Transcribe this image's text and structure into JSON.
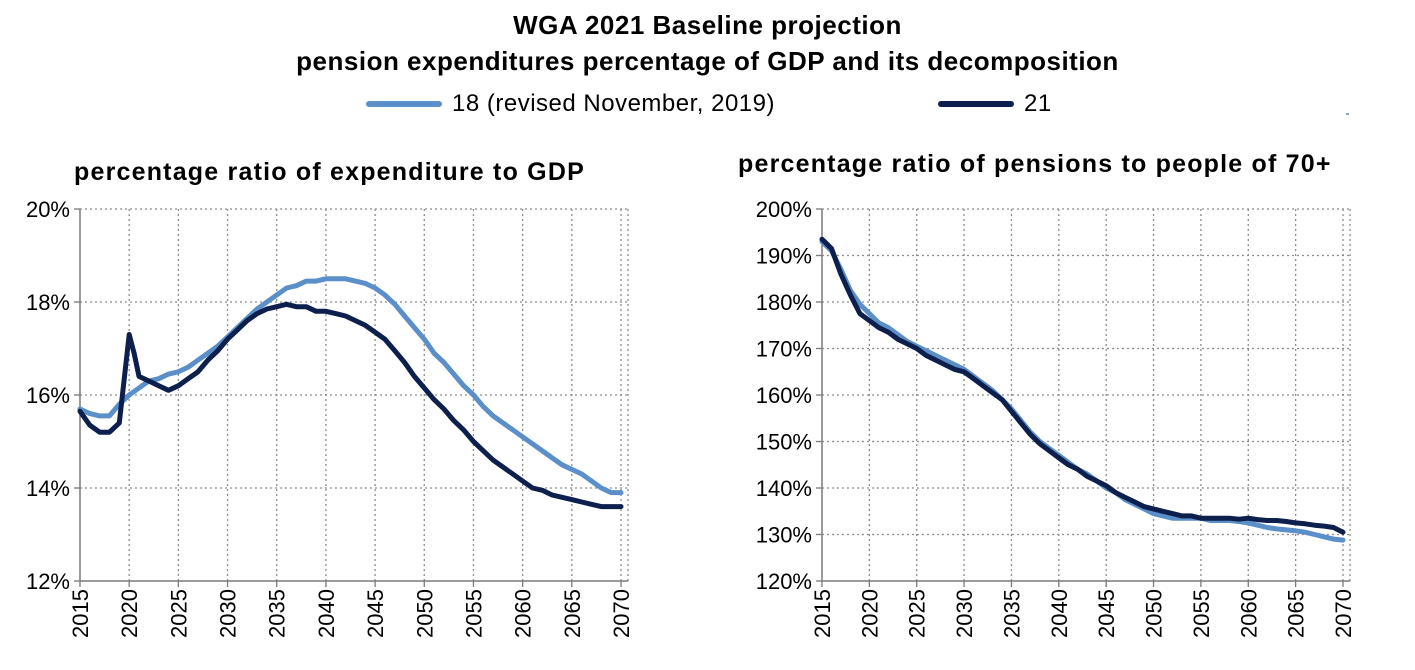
{
  "header": {
    "title_line1": "WGA 2021 Baseline projection",
    "title_line2": "pension expenditures percentage of GDP and its decomposition"
  },
  "legend": {
    "items": [
      {
        "label": "18 (revised November, 2019)",
        "color": "#5b8fc9"
      },
      {
        "label": "21",
        "color": "#0c1f4d"
      }
    ]
  },
  "chart_data": [
    {
      "type": "line",
      "title": "percentage ratio of expenditure to GDP",
      "xlabel": "",
      "ylabel": "",
      "xlim": [
        2015,
        2070
      ],
      "ylim": [
        12,
        20
      ],
      "yunit": "%",
      "grid": true,
      "x_ticks": [
        "2015",
        "2020",
        "2025",
        "2030",
        "2035",
        "2040",
        "2045",
        "2050",
        "2055",
        "2060",
        "2065",
        "2070"
      ],
      "y_ticks": [
        "12%",
        "14%",
        "16%",
        "18%",
        "20%"
      ],
      "series": [
        {
          "name": "18 (revised November, 2019)",
          "color": "#5b8fc9",
          "x": [
            2015,
            2016,
            2017,
            2018,
            2019,
            2020,
            2021,
            2022,
            2023,
            2024,
            2025,
            2026,
            2027,
            2028,
            2029,
            2030,
            2031,
            2032,
            2033,
            2034,
            2035,
            2036,
            2037,
            2038,
            2039,
            2040,
            2041,
            2042,
            2043,
            2044,
            2045,
            2046,
            2047,
            2048,
            2049,
            2050,
            2051,
            2052,
            2053,
            2054,
            2055,
            2056,
            2057,
            2058,
            2059,
            2060,
            2061,
            2062,
            2063,
            2064,
            2065,
            2066,
            2067,
            2068,
            2069,
            2070
          ],
          "y": [
            15.7,
            15.6,
            15.55,
            15.55,
            15.8,
            16.0,
            16.15,
            16.3,
            16.35,
            16.45,
            16.5,
            16.6,
            16.75,
            16.9,
            17.05,
            17.25,
            17.45,
            17.65,
            17.85,
            18.0,
            18.15,
            18.3,
            18.35,
            18.45,
            18.45,
            18.5,
            18.5,
            18.5,
            18.45,
            18.4,
            18.3,
            18.15,
            17.95,
            17.7,
            17.45,
            17.2,
            16.9,
            16.7,
            16.45,
            16.2,
            16.0,
            15.75,
            15.55,
            15.4,
            15.25,
            15.1,
            14.95,
            14.8,
            14.65,
            14.5,
            14.4,
            14.3,
            14.15,
            14.0,
            13.9,
            13.9
          ]
        },
        {
          "name": "21",
          "color": "#0c1f4d",
          "x": [
            2015,
            2016,
            2017,
            2018,
            2019,
            2020,
            2020.5,
            2021,
            2022,
            2023,
            2024,
            2025,
            2026,
            2027,
            2028,
            2029,
            2030,
            2031,
            2032,
            2033,
            2034,
            2035,
            2036,
            2037,
            2038,
            2039,
            2040,
            2041,
            2042,
            2043,
            2044,
            2045,
            2046,
            2047,
            2048,
            2049,
            2050,
            2051,
            2052,
            2053,
            2054,
            2055,
            2056,
            2057,
            2058,
            2059,
            2060,
            2061,
            2062,
            2063,
            2064,
            2065,
            2066,
            2067,
            2068,
            2069,
            2070
          ],
          "y": [
            15.65,
            15.35,
            15.2,
            15.2,
            15.4,
            17.3,
            16.9,
            16.4,
            16.3,
            16.2,
            16.1,
            16.2,
            16.35,
            16.5,
            16.75,
            16.95,
            17.2,
            17.4,
            17.6,
            17.75,
            17.85,
            17.9,
            17.95,
            17.9,
            17.9,
            17.8,
            17.8,
            17.75,
            17.7,
            17.6,
            17.5,
            17.35,
            17.2,
            16.95,
            16.7,
            16.4,
            16.15,
            15.9,
            15.7,
            15.45,
            15.25,
            15.0,
            14.8,
            14.6,
            14.45,
            14.3,
            14.15,
            14.0,
            13.95,
            13.85,
            13.8,
            13.75,
            13.7,
            13.65,
            13.6,
            13.6,
            13.6
          ]
        }
      ]
    },
    {
      "type": "line",
      "title": "percentage ratio of pensions to people of 70+",
      "xlabel": "",
      "ylabel": "",
      "xlim": [
        2015,
        2070
      ],
      "ylim": [
        120,
        200
      ],
      "yunit": "%",
      "grid": true,
      "x_ticks": [
        "2015",
        "2020",
        "2025",
        "2030",
        "2035",
        "2040",
        "2045",
        "2050",
        "2055",
        "2060",
        "2065",
        "2070"
      ],
      "y_ticks": [
        "120%",
        "130%",
        "140%",
        "150%",
        "160%",
        "170%",
        "180%",
        "190%",
        "200%"
      ],
      "series": [
        {
          "name": "18 (revised November, 2019)",
          "color": "#5b8fc9",
          "x": [
            2015,
            2016,
            2017,
            2018,
            2019,
            2020,
            2021,
            2022,
            2023,
            2024,
            2025,
            2026,
            2027,
            2028,
            2029,
            2030,
            2031,
            2032,
            2033,
            2034,
            2035,
            2036,
            2037,
            2038,
            2039,
            2040,
            2041,
            2042,
            2043,
            2044,
            2045,
            2046,
            2047,
            2048,
            2049,
            2050,
            2051,
            2052,
            2053,
            2054,
            2055,
            2056,
            2057,
            2058,
            2059,
            2060,
            2061,
            2062,
            2063,
            2064,
            2065,
            2066,
            2067,
            2068,
            2069,
            2070
          ],
          "y": [
            193,
            191,
            187,
            182.5,
            179.5,
            177.5,
            175.5,
            174.5,
            173,
            171.5,
            170.5,
            169.5,
            168.5,
            167.5,
            166.5,
            165.5,
            164,
            162.5,
            161,
            159,
            157,
            154.5,
            152,
            150,
            148.5,
            147,
            145.5,
            144,
            143,
            141.5,
            140,
            139,
            137.5,
            136.5,
            135.5,
            134.5,
            134,
            133.5,
            133.5,
            133.5,
            133.5,
            133,
            133,
            133,
            132.8,
            132.5,
            132,
            131.5,
            131.2,
            131,
            130.8,
            130.5,
            130,
            129.5,
            129,
            128.8
          ]
        },
        {
          "name": "21",
          "color": "#0c1f4d",
          "x": [
            2015,
            2016,
            2017,
            2018,
            2019,
            2020,
            2021,
            2022,
            2023,
            2024,
            2025,
            2026,
            2027,
            2028,
            2029,
            2030,
            2031,
            2032,
            2033,
            2034,
            2035,
            2036,
            2037,
            2038,
            2039,
            2040,
            2041,
            2042,
            2043,
            2044,
            2045,
            2046,
            2047,
            2048,
            2049,
            2050,
            2051,
            2052,
            2053,
            2054,
            2055,
            2056,
            2057,
            2058,
            2059,
            2060,
            2061,
            2062,
            2063,
            2064,
            2065,
            2066,
            2067,
            2068,
            2069,
            2070
          ],
          "y": [
            193.5,
            191.5,
            186,
            181.5,
            177.5,
            176,
            174.5,
            173.5,
            172,
            171,
            170,
            168.5,
            167.5,
            166.5,
            165.5,
            165,
            163.5,
            162,
            160.5,
            159,
            156.5,
            154,
            151.5,
            149.5,
            148,
            146.5,
            145,
            144,
            142.5,
            141.5,
            140.5,
            139,
            138,
            137,
            136,
            135.5,
            135,
            134.5,
            134,
            134,
            133.5,
            133.5,
            133.5,
            133.5,
            133.3,
            133.5,
            133.2,
            133,
            133,
            132.8,
            132.5,
            132.3,
            132,
            131.8,
            131.5,
            130.5
          ]
        }
      ]
    }
  ]
}
